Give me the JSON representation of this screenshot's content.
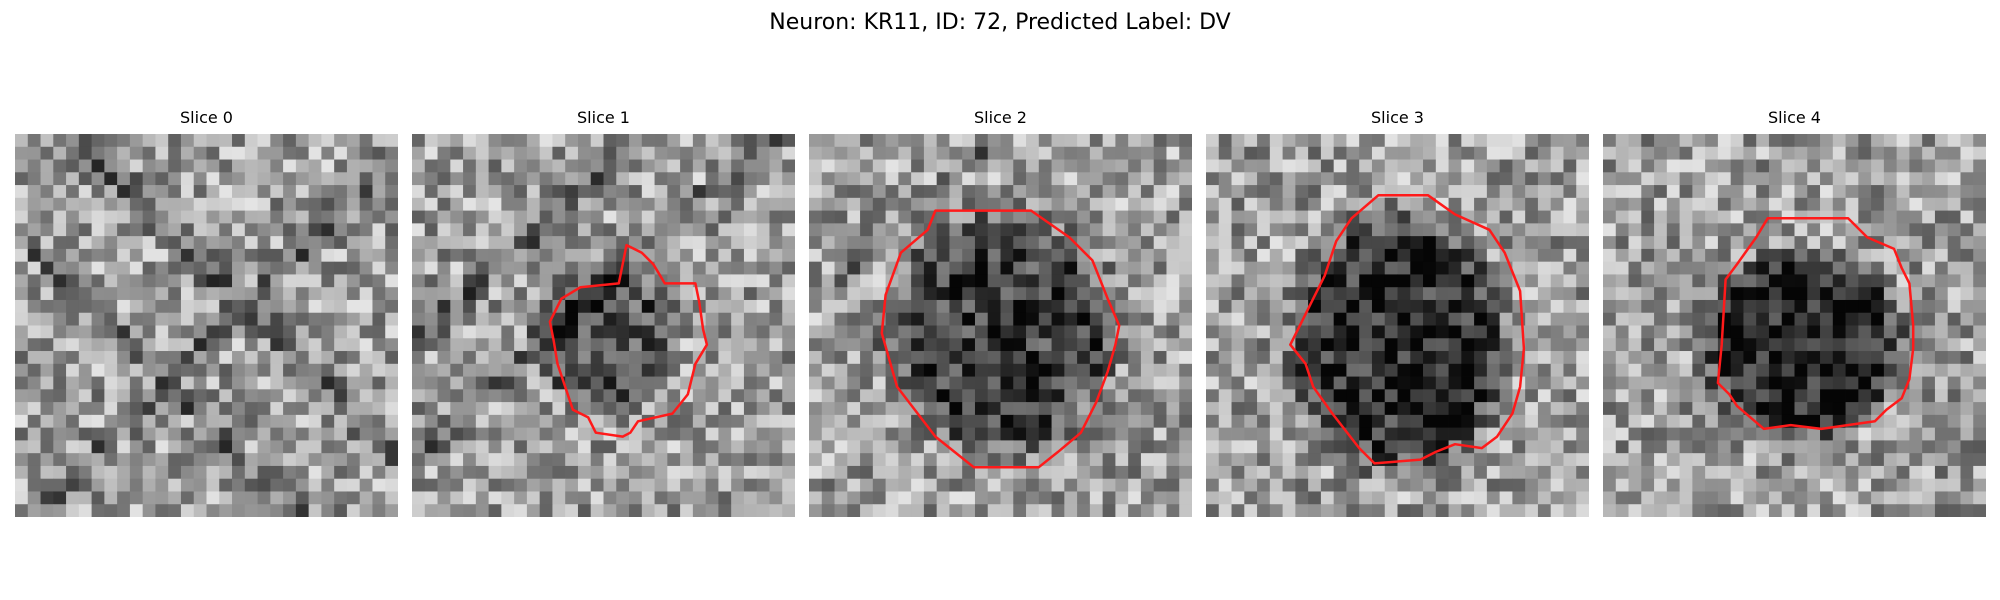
{
  "figure": {
    "title": "Neuron: KR11, ID: 72, Predicted Label: DV"
  },
  "panels": [
    {
      "title": "Slice 0",
      "has_contour": false
    },
    {
      "title": "Slice 1",
      "has_contour": true
    },
    {
      "title": "Slice 2",
      "has_contour": true
    },
    {
      "title": "Slice 3",
      "has_contour": true
    },
    {
      "title": "Slice 4",
      "has_contour": true
    }
  ],
  "colors": {
    "contour": "#ff1a1a",
    "background": "#ffffff"
  },
  "image": {
    "colormap": "grayscale",
    "grid_cells": 30
  }
}
